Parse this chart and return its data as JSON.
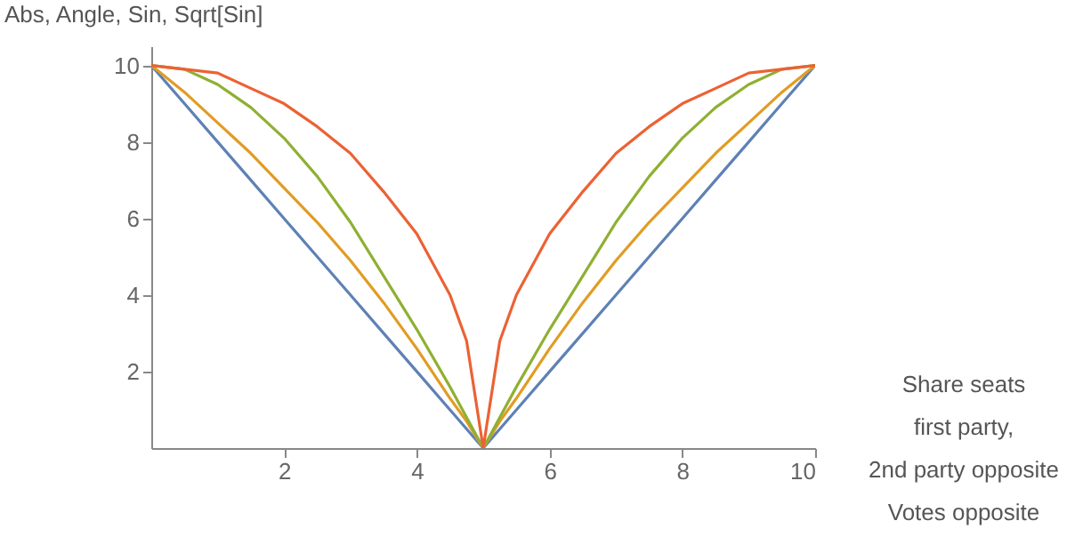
{
  "chart_data": {
    "type": "line",
    "ylabel": "Abs, Angle, Sin, Sqrt[Sin]",
    "xlabel": "Share seats\nfirst party,\n2nd party opposite\nVotes opposite",
    "x": [
      0,
      0.5,
      1,
      1.5,
      2,
      2.5,
      3,
      3.5,
      4,
      4.5,
      4.75,
      5,
      5.25,
      5.5,
      6,
      6.5,
      7,
      7.5,
      8,
      8.5,
      9,
      9.5,
      10
    ],
    "series": [
      {
        "color": "#5e81b5",
        "values": [
          10,
          9,
          8,
          7,
          6,
          5,
          4,
          3,
          2,
          1,
          0.5,
          0,
          0.5,
          1,
          2,
          3,
          4,
          5,
          6,
          7,
          8,
          9,
          10
        ]
      },
      {
        "color": "#e19c24",
        "values": [
          10,
          9.3,
          8.5,
          7.7,
          6.8,
          5.9,
          4.9,
          3.8,
          2.6,
          1.3,
          0.7,
          0,
          0.7,
          1.3,
          2.6,
          3.8,
          4.9,
          5.9,
          6.8,
          7.7,
          8.5,
          9.3,
          10
        ]
      },
      {
        "color": "#8fb032",
        "values": [
          10,
          9.9,
          9.5,
          8.9,
          8.1,
          7.1,
          5.9,
          4.5,
          3.1,
          1.6,
          0.8,
          0,
          0.8,
          1.6,
          3.1,
          4.5,
          5.9,
          7.1,
          8.1,
          8.9,
          9.5,
          9.9,
          10
        ]
      },
      {
        "color": "#eb6235",
        "values": [
          10,
          9.9,
          9.8,
          9.4,
          9.0,
          8.4,
          7.7,
          6.7,
          5.6,
          4.0,
          2.8,
          0,
          2.8,
          4.0,
          5.6,
          6.7,
          7.7,
          8.4,
          9.0,
          9.4,
          9.8,
          9.9,
          10
        ]
      }
    ],
    "xlim": [
      0,
      10
    ],
    "ylim": [
      0,
      10.5
    ],
    "xticks": [
      2,
      4,
      6,
      8,
      10
    ],
    "yticks": [
      2,
      4,
      6,
      8,
      10
    ],
    "grid": false,
    "legend": false,
    "marker": "none",
    "line_style": "solid"
  }
}
